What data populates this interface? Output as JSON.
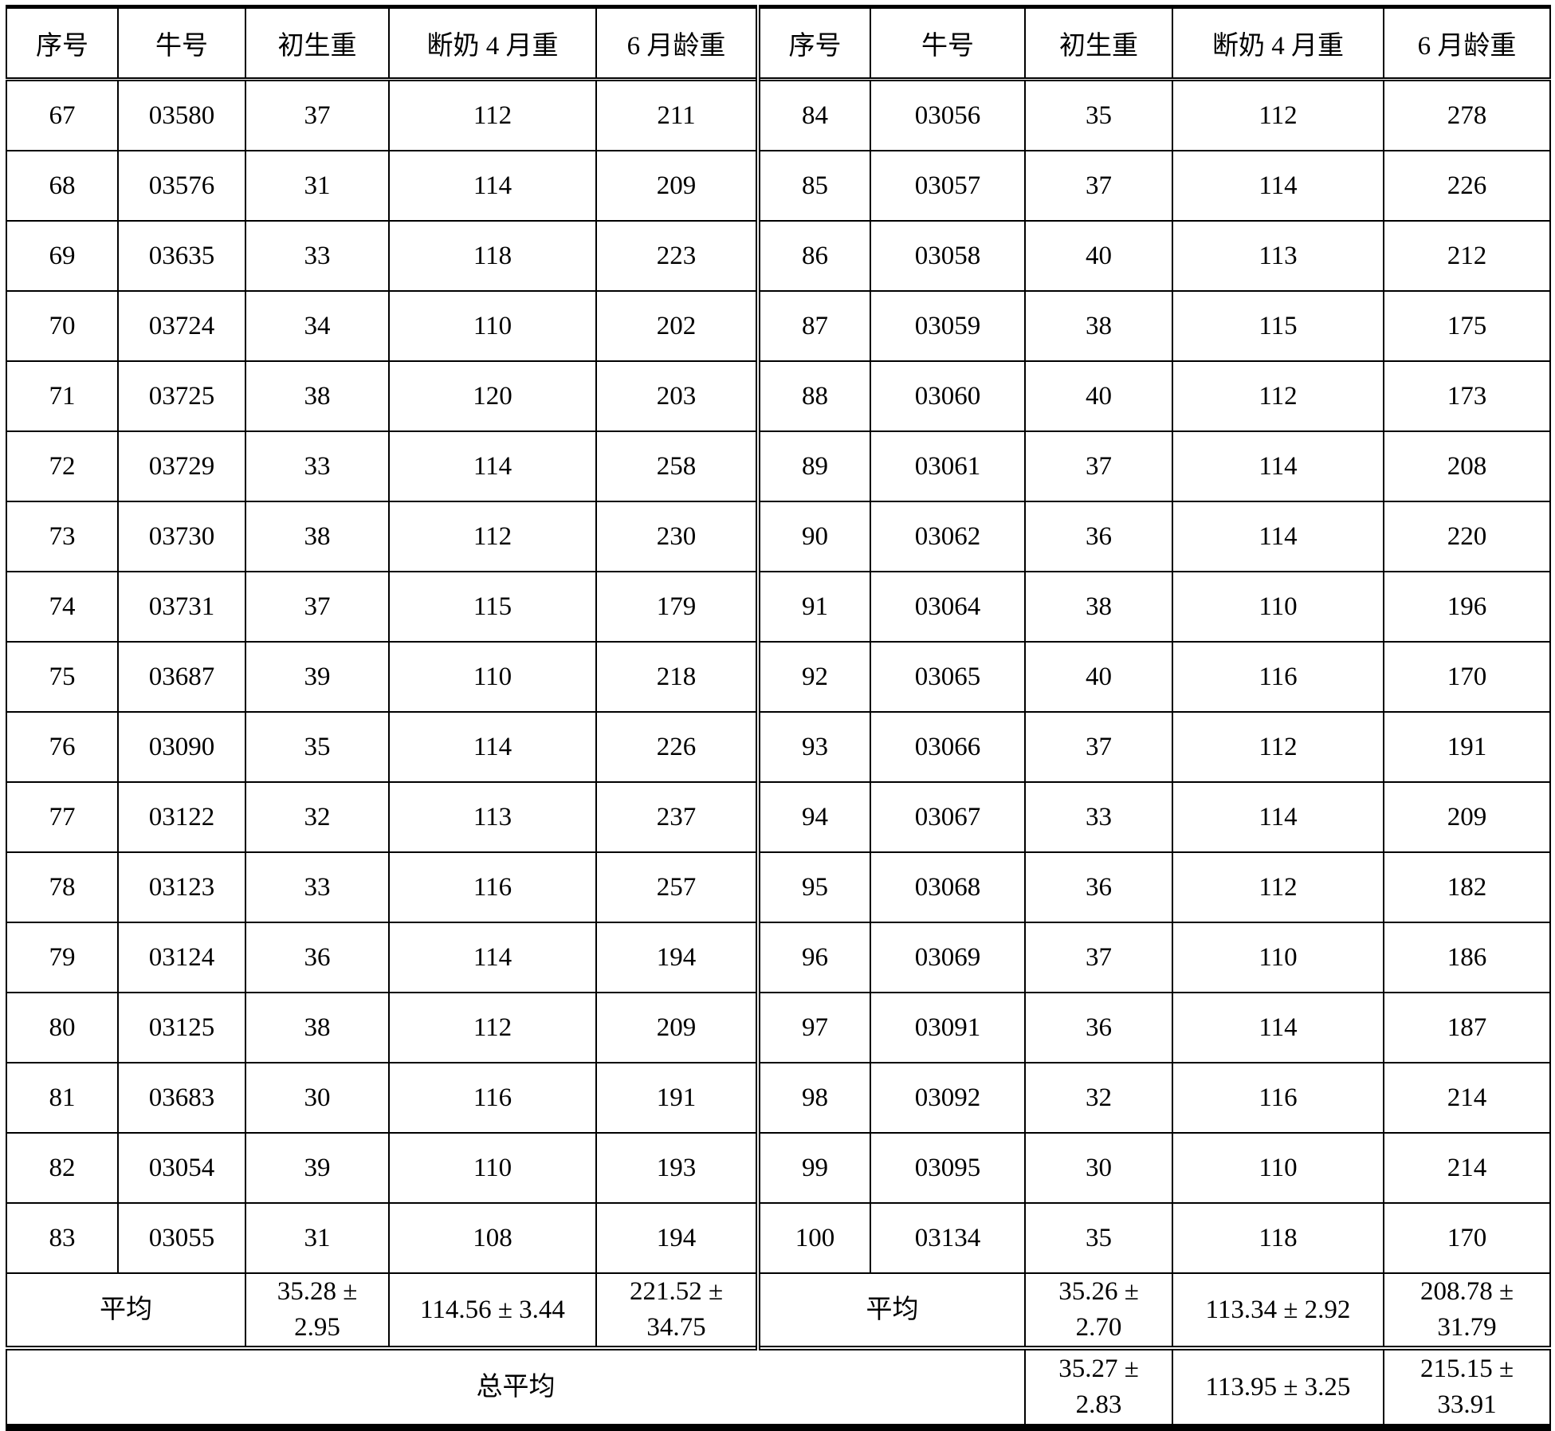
{
  "table": {
    "headers": [
      "序号",
      "牛号",
      "初生重",
      "断奶 4 月重",
      "6 月龄重"
    ],
    "left_rows": [
      [
        "67",
        "03580",
        "37",
        "112",
        "211"
      ],
      [
        "68",
        "03576",
        "31",
        "114",
        "209"
      ],
      [
        "69",
        "03635",
        "33",
        "118",
        "223"
      ],
      [
        "70",
        "03724",
        "34",
        "110",
        "202"
      ],
      [
        "71",
        "03725",
        "38",
        "120",
        "203"
      ],
      [
        "72",
        "03729",
        "33",
        "114",
        "258"
      ],
      [
        "73",
        "03730",
        "38",
        "112",
        "230"
      ],
      [
        "74",
        "03731",
        "37",
        "115",
        "179"
      ],
      [
        "75",
        "03687",
        "39",
        "110",
        "218"
      ],
      [
        "76",
        "03090",
        "35",
        "114",
        "226"
      ],
      [
        "77",
        "03122",
        "32",
        "113",
        "237"
      ],
      [
        "78",
        "03123",
        "33",
        "116",
        "257"
      ],
      [
        "79",
        "03124",
        "36",
        "114",
        "194"
      ],
      [
        "80",
        "03125",
        "38",
        "112",
        "209"
      ],
      [
        "81",
        "03683",
        "30",
        "116",
        "191"
      ],
      [
        "82",
        "03054",
        "39",
        "110",
        "193"
      ],
      [
        "83",
        "03055",
        "31",
        "108",
        "194"
      ]
    ],
    "right_rows": [
      [
        "84",
        "03056",
        "35",
        "112",
        "278"
      ],
      [
        "85",
        "03057",
        "37",
        "114",
        "226"
      ],
      [
        "86",
        "03058",
        "40",
        "113",
        "212"
      ],
      [
        "87",
        "03059",
        "38",
        "115",
        "175"
      ],
      [
        "88",
        "03060",
        "40",
        "112",
        "173"
      ],
      [
        "89",
        "03061",
        "37",
        "114",
        "208"
      ],
      [
        "90",
        "03062",
        "36",
        "114",
        "220"
      ],
      [
        "91",
        "03064",
        "38",
        "110",
        "196"
      ],
      [
        "92",
        "03065",
        "40",
        "116",
        "170"
      ],
      [
        "93",
        "03066",
        "37",
        "112",
        "191"
      ],
      [
        "94",
        "03067",
        "33",
        "114",
        "209"
      ],
      [
        "95",
        "03068",
        "36",
        "112",
        "182"
      ],
      [
        "96",
        "03069",
        "37",
        "110",
        "186"
      ],
      [
        "97",
        "03091",
        "36",
        "114",
        "187"
      ],
      [
        "98",
        "03092",
        "32",
        "116",
        "214"
      ],
      [
        "99",
        "03095",
        "30",
        "110",
        "214"
      ],
      [
        "100",
        "03134",
        "35",
        "118",
        "170"
      ]
    ],
    "left_avg": {
      "label": "平均",
      "values": [
        "35.28 ±\n2.95",
        "114.56 ± 3.44",
        "221.52 ±\n34.75"
      ]
    },
    "right_avg": {
      "label": "平均",
      "values": [
        "35.26 ±\n2.70",
        "113.34 ± 2.92",
        "208.78 ±\n31.79"
      ]
    },
    "total": {
      "label": "总平均",
      "values": [
        "35.27 ±\n2.83",
        "113.95 ± 3.25",
        "215.15 ±\n33.91"
      ]
    }
  }
}
